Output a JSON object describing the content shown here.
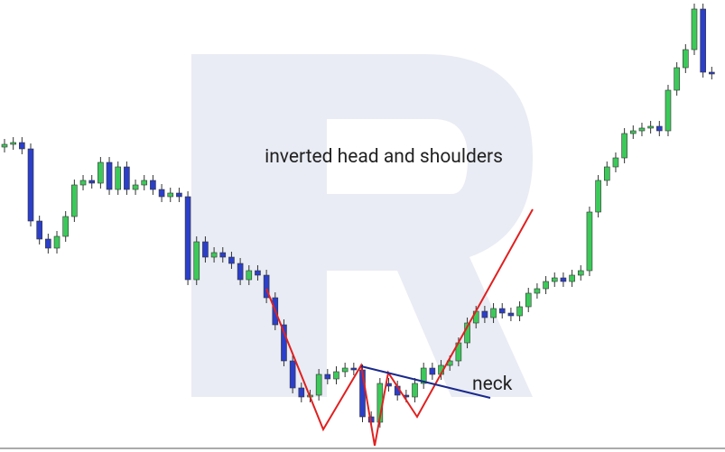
{
  "chart_data": {
    "type": "candlestick",
    "annotations": [
      "inverted head and shoulders",
      "neck"
    ],
    "ylim": [
      0,
      501
    ],
    "up_color": "#3cc95a",
    "down_color": "#2b3fc9",
    "open": [
      338,
      341,
      343,
      336,
      256,
      236,
      226,
      239,
      261,
      296,
      301,
      298,
      321,
      291,
      316,
      291,
      296,
      301,
      291,
      283,
      287,
      283,
      191,
      233,
      216,
      221,
      216,
      209,
      191,
      201,
      196,
      171,
      141,
      101,
      71,
      61,
      63,
      86,
      81,
      89,
      93,
      91,
      39,
      33,
      76,
      73,
      63,
      61,
      76,
      93,
      86,
      96,
      101,
      121,
      143,
      156,
      149,
      159,
      154,
      151,
      161,
      176,
      181,
      189,
      193,
      189,
      196,
      201,
      266,
      301,
      316,
      326,
      353,
      356,
      359,
      361,
      356,
      401,
      426,
      446,
      491,
      421
    ],
    "high": [
      347,
      349,
      349,
      342,
      262,
      242,
      245,
      267,
      302,
      307,
      307,
      327,
      327,
      322,
      322,
      302,
      307,
      307,
      297,
      293,
      293,
      289,
      239,
      239,
      227,
      227,
      222,
      215,
      207,
      207,
      202,
      177,
      147,
      107,
      77,
      69,
      92,
      92,
      95,
      99,
      99,
      97,
      45,
      82,
      82,
      79,
      69,
      82,
      99,
      99,
      102,
      107,
      127,
      149,
      162,
      162,
      165,
      165,
      160,
      167,
      182,
      187,
      195,
      199,
      199,
      202,
      207,
      272,
      307,
      322,
      332,
      359,
      362,
      365,
      367,
      367,
      407,
      432,
      452,
      497,
      497,
      427
    ],
    "low": [
      332,
      335,
      330,
      250,
      230,
      220,
      220,
      233,
      255,
      290,
      292,
      292,
      285,
      285,
      285,
      285,
      290,
      285,
      277,
      277,
      277,
      185,
      185,
      210,
      210,
      210,
      203,
      185,
      185,
      190,
      165,
      135,
      95,
      65,
      55,
      55,
      57,
      75,
      75,
      83,
      85,
      33,
      27,
      27,
      67,
      57,
      55,
      55,
      70,
      80,
      80,
      90,
      95,
      115,
      137,
      143,
      143,
      148,
      145,
      145,
      155,
      170,
      175,
      183,
      183,
      183,
      190,
      195,
      260,
      295,
      310,
      320,
      347,
      350,
      353,
      350,
      350,
      395,
      420,
      440,
      415,
      413
    ],
    "close": [
      341,
      343,
      336,
      256,
      236,
      226,
      239,
      261,
      296,
      301,
      298,
      321,
      291,
      316,
      291,
      296,
      301,
      291,
      283,
      287,
      283,
      191,
      233,
      216,
      221,
      216,
      209,
      191,
      201,
      196,
      171,
      141,
      101,
      71,
      61,
      63,
      86,
      81,
      89,
      93,
      91,
      39,
      33,
      76,
      73,
      63,
      61,
      76,
      93,
      86,
      96,
      101,
      121,
      143,
      156,
      149,
      159,
      154,
      151,
      161,
      176,
      181,
      189,
      193,
      189,
      196,
      201,
      266,
      301,
      316,
      326,
      353,
      356,
      359,
      361,
      356,
      401,
      426,
      446,
      491,
      421,
      419
    ]
  }
}
